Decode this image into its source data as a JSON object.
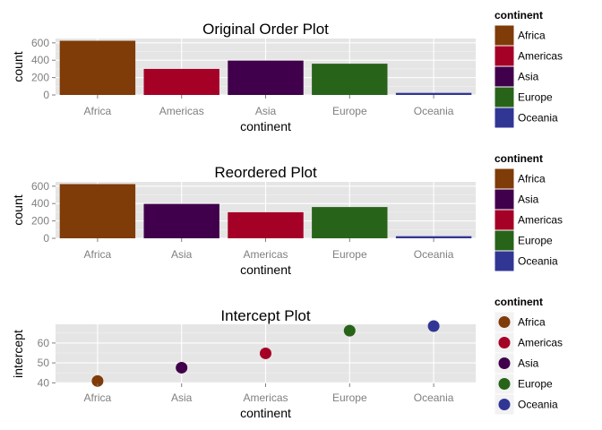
{
  "chart_data": [
    {
      "type": "bar",
      "title": "Original Order Plot",
      "xlabel": "continent",
      "ylabel": "count",
      "categories": [
        "Africa",
        "Americas",
        "Asia",
        "Europe",
        "Oceania"
      ],
      "values": [
        624,
        300,
        396,
        360,
        24
      ],
      "colors": [
        "#7f3b08",
        "#a50026",
        "#40004b",
        "#276419",
        "#313695"
      ],
      "ylim": [
        0,
        650
      ],
      "yticks": [
        0,
        200,
        400,
        600
      ],
      "grid": true,
      "legend": {
        "title": "continent",
        "position": "right",
        "items": [
          {
            "label": "Africa",
            "color": "#7f3b08"
          },
          {
            "label": "Americas",
            "color": "#a50026"
          },
          {
            "label": "Asia",
            "color": "#40004b"
          },
          {
            "label": "Europe",
            "color": "#276419"
          },
          {
            "label": "Oceania",
            "color": "#313695"
          }
        ]
      }
    },
    {
      "type": "bar",
      "title": "Reordered Plot",
      "xlabel": "continent",
      "ylabel": "count",
      "categories": [
        "Africa",
        "Asia",
        "Americas",
        "Europe",
        "Oceania"
      ],
      "values": [
        624,
        396,
        300,
        360,
        24
      ],
      "colors": [
        "#7f3b08",
        "#40004b",
        "#a50026",
        "#276419",
        "#313695"
      ],
      "ylim": [
        0,
        650
      ],
      "yticks": [
        0,
        200,
        400,
        600
      ],
      "grid": true,
      "legend": {
        "title": "continent",
        "position": "right",
        "items": [
          {
            "label": "Africa",
            "color": "#7f3b08"
          },
          {
            "label": "Asia",
            "color": "#40004b"
          },
          {
            "label": "Americas",
            "color": "#a50026"
          },
          {
            "label": "Europe",
            "color": "#276419"
          },
          {
            "label": "Oceania",
            "color": "#313695"
          }
        ]
      }
    },
    {
      "type": "scatter",
      "title": "Intercept Plot",
      "xlabel": "continent",
      "ylabel": "intercept",
      "categories": [
        "Africa",
        "Asia",
        "Americas",
        "Europe",
        "Oceania"
      ],
      "values": [
        40.9,
        47.6,
        54.8,
        66.2,
        68.5
      ],
      "colors": [
        "#7f3b08",
        "#40004b",
        "#a50026",
        "#276419",
        "#313695"
      ],
      "ylim": [
        39.7,
        69.4
      ],
      "yticks": [
        40,
        50,
        60
      ],
      "grid": true,
      "legend": {
        "title": "continent",
        "position": "right",
        "items": [
          {
            "label": "Africa",
            "color": "#7f3b08"
          },
          {
            "label": "Americas",
            "color": "#a50026"
          },
          {
            "label": "Asia",
            "color": "#40004b"
          },
          {
            "label": "Europe",
            "color": "#276419"
          },
          {
            "label": "Oceania",
            "color": "#313695"
          }
        ]
      }
    }
  ]
}
